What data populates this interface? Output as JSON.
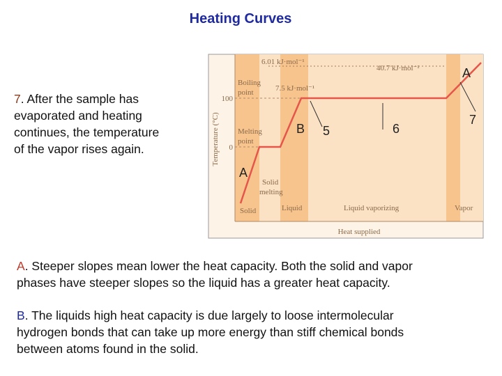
{
  "title": "Heating Curves",
  "side_note": {
    "number": "7",
    "lines": [
      ". After the sample has",
      "evaporated and heating",
      "continues, the temperature",
      "of the vapor rises again."
    ]
  },
  "figure": {
    "heat_melting": "6.01 kJ·mol⁻¹",
    "heat_vaporizing": "40.7 kJ·mol⁻¹",
    "heat_other": "7.5 kJ·mol⁻¹",
    "boiling_point": [
      "Boiling",
      "point"
    ],
    "melting_point": [
      "Melting",
      "point"
    ],
    "tick_100": "100",
    "tick_0": "0",
    "y_axis_label": "Temperature (°C)",
    "x_axis_label": "Heat supplied",
    "phase_labels": {
      "solid": "Solid",
      "solid_melting": [
        "Solid",
        "melting"
      ],
      "liquid": "Liquid",
      "liquid_vaporizing": "Liquid vaporizing",
      "vapor": "Vapor"
    },
    "markers": {
      "a_top": "A",
      "a_left": "A",
      "b": "B",
      "m5": "5",
      "m6": "6",
      "m7": "7"
    }
  },
  "paragraphs": [
    {
      "marker": "A",
      "lines": [
        ". Steeper slopes mean lower the heat capacity. Both the solid and vapor",
        "phases have steeper slopes so the liquid has a greater heat capacity."
      ]
    },
    {
      "marker": "B",
      "lines": [
        ". The liquids high heat capacity is due largely to loose intermolecular",
        "hydrogen bonds that can take up more energy than stiff chemical bonds",
        "between atoms found in the solid."
      ]
    }
  ]
}
